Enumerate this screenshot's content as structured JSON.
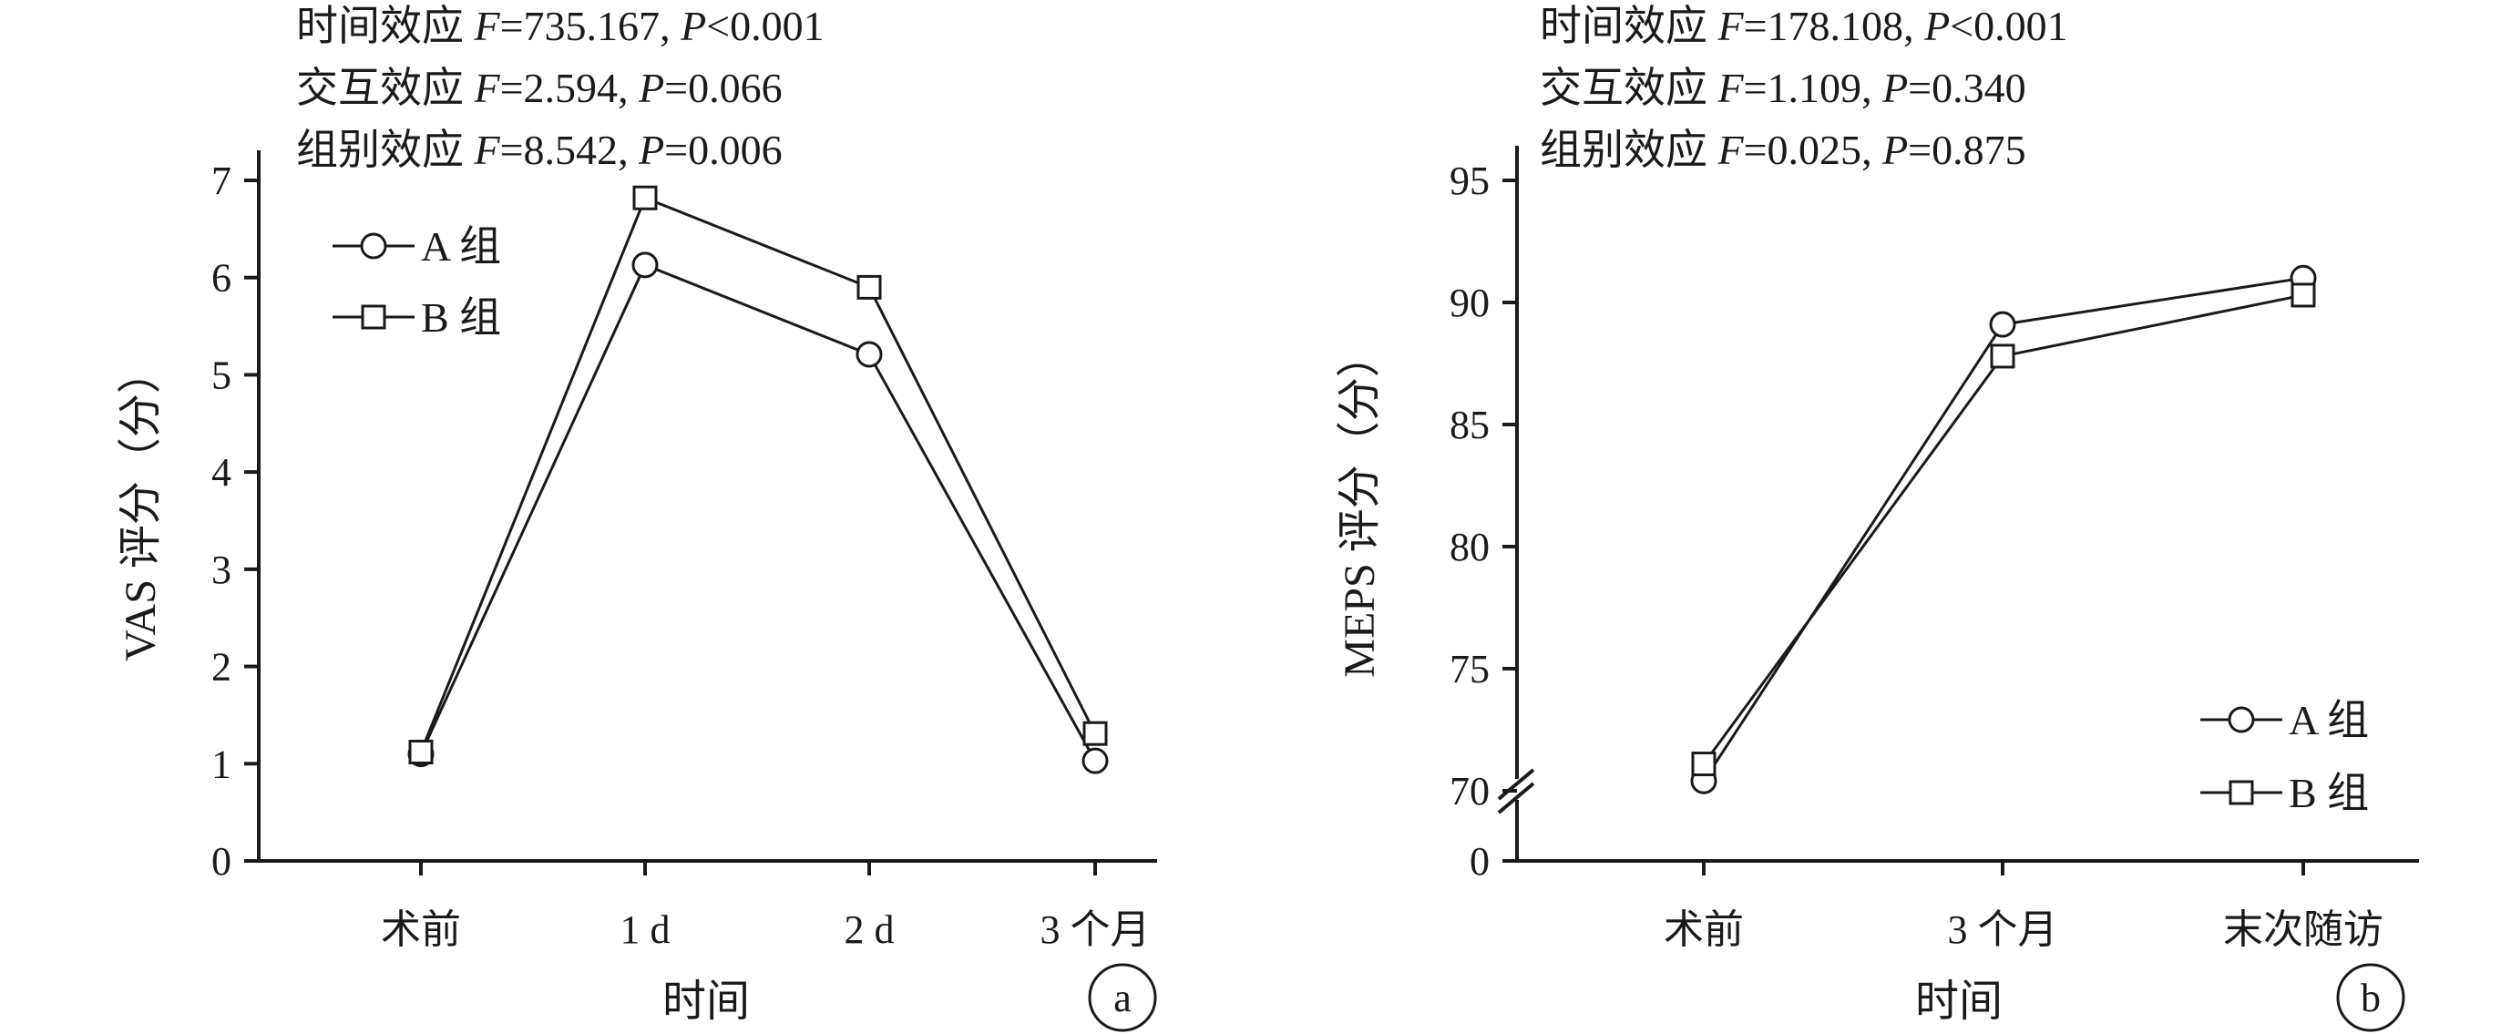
{
  "chart_data": [
    {
      "type": "line",
      "panel_label": "a",
      "annotations": [
        {
          "label": "时间效应",
          "f": "F",
          "f_value": "=735.167",
          "p": "P",
          "p_value": "<0.001"
        },
        {
          "label": "交互效应",
          "f": "F",
          "f_value": "=2.594",
          "p": "P",
          "p_value": "=0.066"
        },
        {
          "label": "组别效应",
          "f": "F",
          "f_value": "=8.542",
          "p": "P",
          "p_value": "=0.006"
        }
      ],
      "xlabel": "时间",
      "ylabel": "VAS 评分（分）",
      "categories": [
        "术前",
        "1 d",
        "2 d",
        "3 个月"
      ],
      "ylim": [
        0,
        7
      ],
      "yticks": [
        "0",
        "1",
        "2",
        "3",
        "4",
        "5",
        "6",
        "7"
      ],
      "axis_break": false,
      "legend_position": "top-left",
      "series": [
        {
          "name": "A 组",
          "marker": "circle",
          "values": [
            1.1,
            6.13,
            5.21,
            1.03
          ]
        },
        {
          "name": "B 组",
          "marker": "square",
          "values": [
            1.12,
            6.82,
            5.9,
            1.31
          ]
        }
      ]
    },
    {
      "type": "line",
      "panel_label": "b",
      "annotations": [
        {
          "label": "时间效应",
          "f": "F",
          "f_value": "=178.108",
          "p": "P",
          "p_value": "<0.001"
        },
        {
          "label": "交互效应",
          "f": "F",
          "f_value": "=1.109",
          "p": "P",
          "p_value": "=0.340"
        },
        {
          "label": "组别效应",
          "f": "F",
          "f_value": "=0.025",
          "p": "P",
          "p_value": "=0.875"
        }
      ],
      "xlabel": "时间",
      "ylabel": "MEPS 评分（分）",
      "categories": [
        "术前",
        "3 个月",
        "末次随访"
      ],
      "ylim": [
        70,
        95
      ],
      "yticks": [
        "0",
        "70",
        "75",
        "80",
        "85",
        "90",
        "95"
      ],
      "axis_break": true,
      "legend_position": "bottom-right",
      "series": [
        {
          "name": "A 组",
          "marker": "circle",
          "values": [
            70.4,
            89.1,
            91.0
          ]
        },
        {
          "name": "B 组",
          "marker": "square",
          "values": [
            71.1,
            87.8,
            90.3
          ]
        }
      ]
    }
  ]
}
